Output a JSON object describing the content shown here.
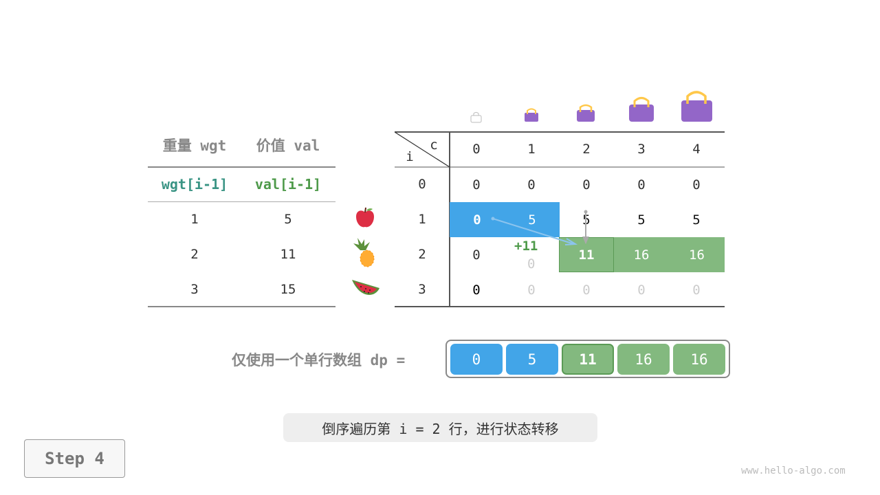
{
  "items_table": {
    "headers": [
      "重量 wgt",
      "价值 val"
    ],
    "subheaders": [
      "wgt[i-1]",
      "val[i-1]"
    ],
    "rows": [
      {
        "wgt": "1",
        "val": "5",
        "fruit": "apple-icon"
      },
      {
        "wgt": "2",
        "val": "11",
        "fruit": "pineapple-icon"
      },
      {
        "wgt": "3",
        "val": "15",
        "fruit": "watermelon-icon"
      }
    ]
  },
  "dp_table": {
    "corner_col": "c",
    "corner_row": "i",
    "col_headers": [
      "0",
      "1",
      "2",
      "3",
      "4"
    ],
    "row_headers": [
      "0",
      "1",
      "2",
      "3"
    ],
    "cells": [
      [
        "0",
        "0",
        "0",
        "0",
        "0"
      ],
      [
        "0",
        "5",
        "5",
        "5",
        "5"
      ],
      [
        "0",
        "0",
        "11",
        "16",
        "16"
      ],
      [
        "0",
        "0",
        "0",
        "0",
        "0"
      ]
    ],
    "plus_label": "+11"
  },
  "dp_array": {
    "label": "仅使用一个单行数组 dp =",
    "values": [
      "0",
      "5",
      "11",
      "16",
      "16"
    ]
  },
  "caption": "倒序遍历第 i = 2 行，进行状态转移",
  "step_button": "Step 4",
  "watermark": "www.hello-algo.com",
  "colors": {
    "blue": "#42a5e8",
    "green": "#83b97f",
    "green_dark": "#5a9a55",
    "teal": "#3a9484",
    "val_green": "#4e9a4a",
    "bag": "#9366c8"
  }
}
